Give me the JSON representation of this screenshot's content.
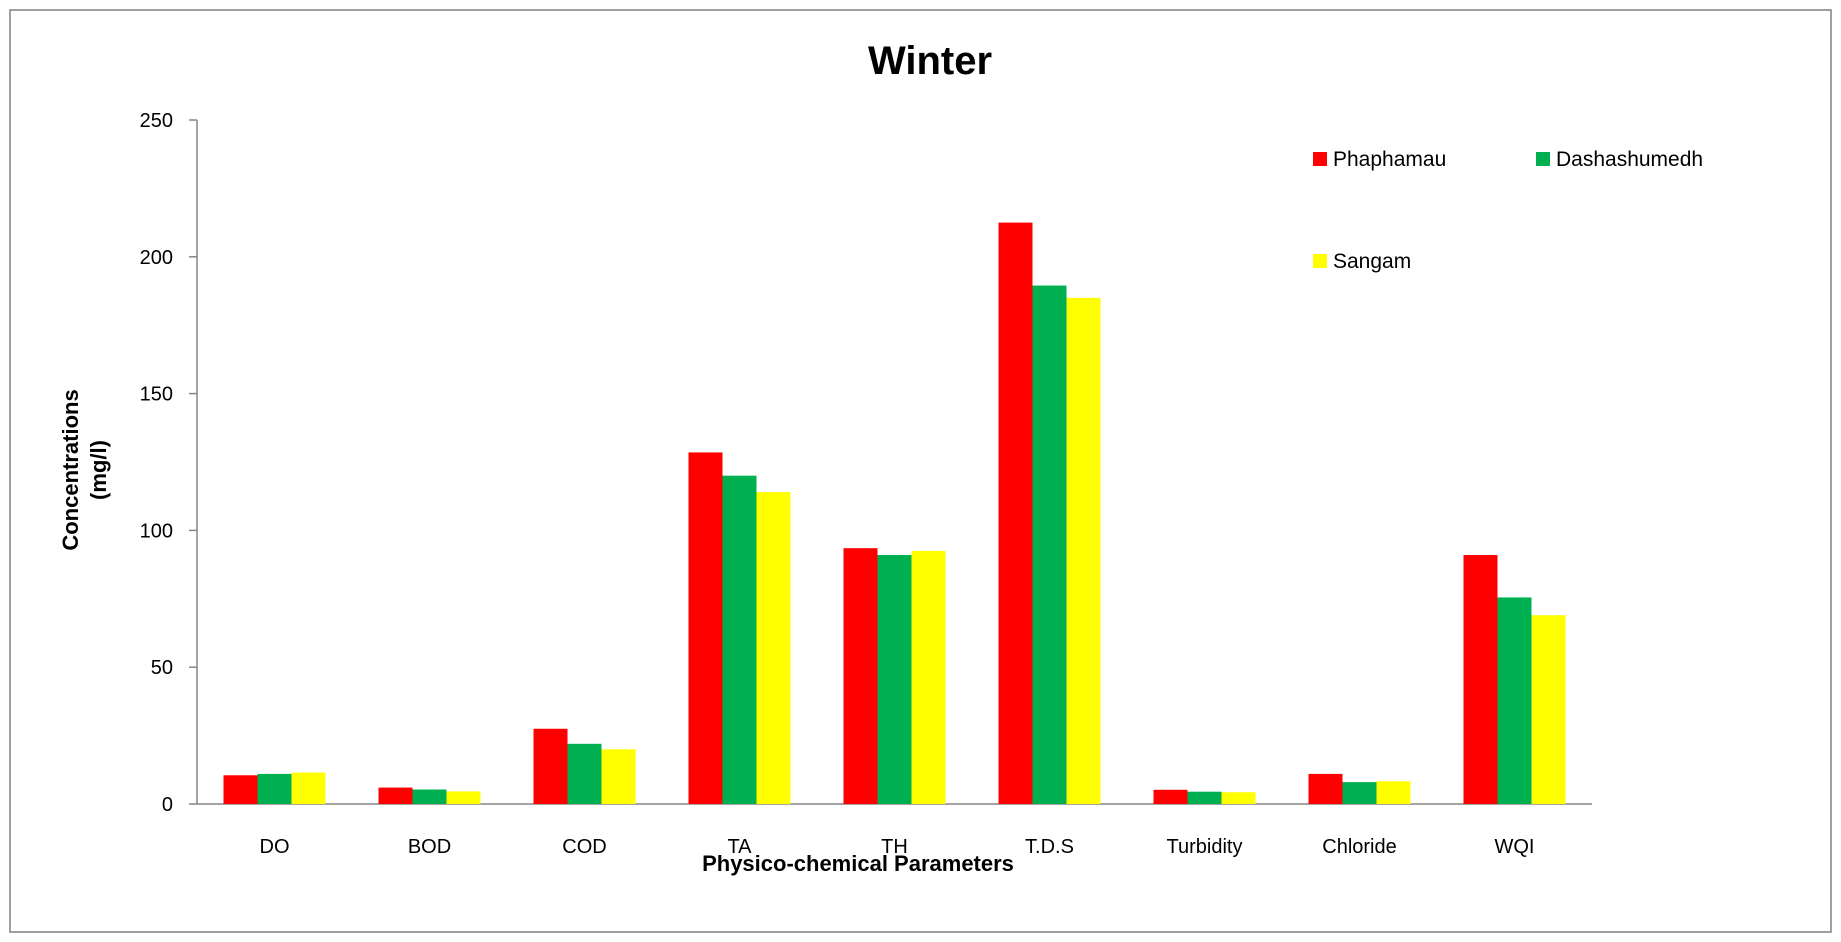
{
  "chart_data": {
    "type": "bar",
    "title": "Winter",
    "xlabel": "Physico-chemical Parameters",
    "ylabel_lines": [
      "Concentrations",
      "(mg/l)"
    ],
    "categories": [
      "DO",
      "BOD",
      "COD",
      "TA",
      "TH",
      "T.D.S",
      "Turbidity",
      "Chloride",
      "WQI"
    ],
    "ylim": [
      0,
      250
    ],
    "yticks": [
      0,
      50,
      100,
      150,
      200,
      250
    ],
    "grid": false,
    "legend_position": "top-right",
    "series": [
      {
        "name": "Phaphamau",
        "color": "#ff0000",
        "values": [
          10.5,
          6,
          27.5,
          128.5,
          93.5,
          212.5,
          5.2,
          11,
          91
        ]
      },
      {
        "name": "Dashashumedh",
        "color": "#00b050",
        "values": [
          11,
          5.3,
          22,
          120,
          91,
          189.5,
          4.5,
          8,
          75.5
        ]
      },
      {
        "name": "Sangam",
        "color": "#ffff00",
        "values": [
          11.5,
          4.6,
          20,
          114,
          92.5,
          185,
          4.3,
          8.3,
          69
        ]
      }
    ]
  }
}
